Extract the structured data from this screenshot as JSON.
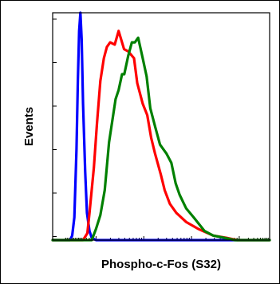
{
  "chart_data": {
    "type": "line",
    "xlabel": "Phospho-c-Fos (S32)",
    "ylabel": "Events",
    "xlim": [
      0,
      100
    ],
    "ylim": [
      0,
      100
    ],
    "x_scale": "log",
    "grid": false,
    "legend": "none",
    "series": [
      {
        "color": "#0000ff",
        "x": [
          0,
          8,
          9,
          10,
          11,
          11.6,
          12.2,
          12.8,
          13.4,
          14,
          15,
          15.8,
          17,
          18,
          20,
          25,
          100
        ],
        "values": [
          0,
          0,
          2,
          10,
          40,
          70,
          92,
          100,
          88,
          60,
          30,
          12,
          4,
          1,
          0,
          0,
          0
        ]
      },
      {
        "color": "#ff0000",
        "x": [
          0,
          14,
          16,
          17,
          19,
          20.4,
          22,
          23.6,
          25,
          26.5,
          28.6,
          30.4,
          32.9,
          34.9,
          37.5,
          39,
          41.5,
          43.6,
          45.4,
          47.2,
          49.8,
          51.6,
          54,
          57,
          61.5,
          67,
          74,
          80,
          85,
          100
        ],
        "values": [
          0,
          0,
          3,
          12,
          32,
          51,
          70,
          80,
          85,
          87,
          86,
          92,
          84,
          83,
          80,
          69,
          60,
          55,
          45,
          38,
          29,
          22,
          16,
          12,
          8,
          5,
          2,
          1,
          0,
          0
        ]
      },
      {
        "color": "#008000",
        "x": [
          0,
          18,
          20,
          22,
          24,
          26,
          29,
          30.4,
          32,
          33,
          34.8,
          36.5,
          37.9,
          39.4,
          41.5,
          43.3,
          45,
          47.2,
          49.5,
          52.5,
          54.7,
          56.7,
          58.5,
          61.5,
          65,
          70,
          74,
          79,
          84,
          88,
          100
        ],
        "values": [
          0,
          0,
          5,
          11,
          22,
          43,
          62,
          66,
          73,
          73,
          81,
          87,
          87,
          89,
          80,
          72,
          58,
          50,
          42,
          38,
          34,
          25,
          20,
          14,
          10,
          4,
          2,
          1,
          0,
          0,
          0
        ]
      }
    ]
  }
}
